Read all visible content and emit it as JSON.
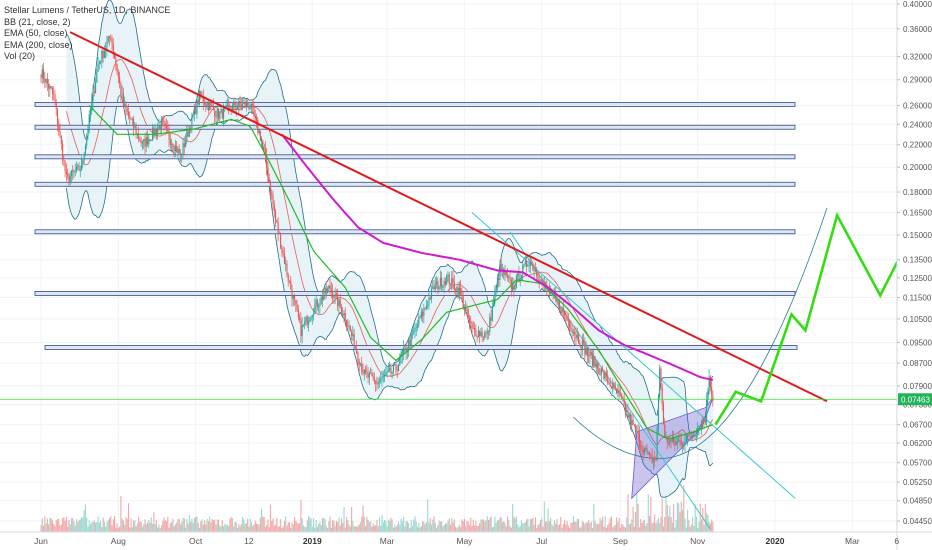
{
  "legend": {
    "title": "Stellar Lumens / TetherUS, 1D, BINANCE",
    "bb": "BB (21, close, 2)",
    "ema50": "EMA (50, close)",
    "ema200": "EMA (200, close)",
    "vol": "Vol (20)"
  },
  "colors": {
    "up": "#26a69a",
    "down": "#ef5350",
    "bb": "#1f6f8b",
    "bb_fill": "#e6f2f7",
    "ema50": "#22b922",
    "ema200": "#d01ad0",
    "trendline": "#e01a1a",
    "projection": "#33dd11",
    "price_line": "#33dd33",
    "price_badge": "#21b35a",
    "channel": "#35c9cf",
    "wedge": "#6a5acd",
    "zone": "#2e4d8a"
  },
  "chart_data": {
    "type": "candlestick",
    "symbol": "XLMUSDT",
    "interval": "1D",
    "exchange": "BINANCE",
    "price_scale": "log",
    "y_ticks": [
      0.4,
      0.36,
      0.32,
      0.29,
      0.26,
      0.24,
      0.22,
      0.2,
      0.18,
      0.165,
      0.15,
      0.135,
      0.125,
      0.115,
      0.105,
      0.095,
      0.087,
      0.079,
      0.073,
      0.067,
      0.062,
      0.057,
      0.0525,
      0.0485,
      0.0445
    ],
    "y_tick_labels": [
      "0.40000",
      "0.36000",
      "0.32000",
      "0.29000",
      "0.26000",
      "0.24000",
      "0.22000",
      "0.20000",
      "0.18000",
      "0.16500",
      "0.15000",
      "0.13500",
      "0.12500",
      "0.11500",
      "0.10500",
      "0.09500",
      "0.08700",
      "0.07900",
      "0.07300",
      "0.06700",
      "0.06200",
      "0.05700",
      "0.05250",
      "0.04850",
      "0.04450"
    ],
    "last_price": 0.07463,
    "last_price_label": "0.07463",
    "x_labels": [
      {
        "d": 0,
        "t": "Jun",
        "b": false
      },
      {
        "d": 61,
        "t": "Aug",
        "b": false
      },
      {
        "d": 122,
        "t": "Oct",
        "b": false
      },
      {
        "d": 164,
        "t": "12",
        "b": false
      },
      {
        "d": 214,
        "t": "2019",
        "b": true
      },
      {
        "d": 273,
        "t": "Mar",
        "b": false
      },
      {
        "d": 334,
        "t": "May",
        "b": false
      },
      {
        "d": 395,
        "t": "Jul",
        "b": false
      },
      {
        "d": 457,
        "t": "Sep",
        "b": false
      },
      {
        "d": 518,
        "t": "Nov",
        "b": false
      },
      {
        "d": 579,
        "t": "2020",
        "b": true
      },
      {
        "d": 640,
        "t": "Mar",
        "b": false
      },
      {
        "d": 675,
        "t": "6",
        "b": false
      }
    ],
    "last_bar_day": 530,
    "price_anchors": [
      [
        0,
        0.3
      ],
      [
        10,
        0.27
      ],
      [
        20,
        0.19
      ],
      [
        32,
        0.2
      ],
      [
        45,
        0.31
      ],
      [
        55,
        0.35
      ],
      [
        65,
        0.26
      ],
      [
        80,
        0.22
      ],
      [
        95,
        0.24
      ],
      [
        110,
        0.21
      ],
      [
        125,
        0.27
      ],
      [
        140,
        0.25
      ],
      [
        155,
        0.26
      ],
      [
        165,
        0.26
      ],
      [
        175,
        0.22
      ],
      [
        185,
        0.16
      ],
      [
        195,
        0.125
      ],
      [
        205,
        0.1
      ],
      [
        215,
        0.11
      ],
      [
        228,
        0.12
      ],
      [
        240,
        0.106
      ],
      [
        255,
        0.083
      ],
      [
        265,
        0.08
      ],
      [
        280,
        0.085
      ],
      [
        295,
        0.1
      ],
      [
        310,
        0.12
      ],
      [
        320,
        0.125
      ],
      [
        330,
        0.118
      ],
      [
        340,
        0.1
      ],
      [
        352,
        0.098
      ],
      [
        362,
        0.13
      ],
      [
        372,
        0.12
      ],
      [
        385,
        0.135
      ],
      [
        398,
        0.12
      ],
      [
        410,
        0.11
      ],
      [
        420,
        0.1
      ],
      [
        432,
        0.09
      ],
      [
        445,
        0.082
      ],
      [
        457,
        0.075
      ],
      [
        465,
        0.068
      ],
      [
        473,
        0.062
      ],
      [
        480,
        0.058
      ],
      [
        485,
        0.058
      ],
      [
        488,
        0.085
      ],
      [
        492,
        0.063
      ],
      [
        500,
        0.062
      ],
      [
        510,
        0.063
      ],
      [
        518,
        0.066
      ],
      [
        524,
        0.069
      ],
      [
        527,
        0.083
      ],
      [
        530,
        0.07463
      ]
    ],
    "ema50_anchors": [
      [
        38,
        0.26
      ],
      [
        60,
        0.23
      ],
      [
        90,
        0.23
      ],
      [
        120,
        0.235
      ],
      [
        150,
        0.245
      ],
      [
        165,
        0.238
      ],
      [
        180,
        0.205
      ],
      [
        195,
        0.175
      ],
      [
        215,
        0.14
      ],
      [
        240,
        0.12
      ],
      [
        260,
        0.097
      ],
      [
        280,
        0.088
      ],
      [
        300,
        0.096
      ],
      [
        320,
        0.108
      ],
      [
        340,
        0.111
      ],
      [
        360,
        0.114
      ],
      [
        375,
        0.124
      ],
      [
        395,
        0.122
      ],
      [
        415,
        0.11
      ],
      [
        440,
        0.092
      ],
      [
        460,
        0.077
      ],
      [
        478,
        0.066
      ],
      [
        495,
        0.063
      ],
      [
        515,
        0.065
      ],
      [
        530,
        0.067
      ]
    ],
    "ema200_anchors": [
      [
        190,
        0.23
      ],
      [
        210,
        0.2
      ],
      [
        230,
        0.175
      ],
      [
        250,
        0.155
      ],
      [
        270,
        0.145
      ],
      [
        300,
        0.139
      ],
      [
        330,
        0.135
      ],
      [
        360,
        0.129
      ],
      [
        380,
        0.128
      ],
      [
        400,
        0.12
      ],
      [
        420,
        0.11
      ],
      [
        440,
        0.1
      ],
      [
        460,
        0.094
      ],
      [
        480,
        0.09
      ],
      [
        500,
        0.086
      ],
      [
        520,
        0.082
      ],
      [
        530,
        0.081
      ]
    ],
    "trendline": {
      "from": [
        23,
        0.355
      ],
      "to": [
        620,
        0.074
      ]
    },
    "horizontal_zones": [
      0.261,
      0.237,
      0.209,
      0.186,
      0.152,
      0.117,
      0.093
    ],
    "projection_path": [
      [
        532,
        0.067
      ],
      [
        548,
        0.077
      ],
      [
        568,
        0.074
      ],
      [
        592,
        0.107
      ],
      [
        603,
        0.1
      ],
      [
        628,
        0.163
      ],
      [
        662,
        0.116
      ],
      [
        696,
        0.166
      ]
    ],
    "volume_max": 1.0
  }
}
